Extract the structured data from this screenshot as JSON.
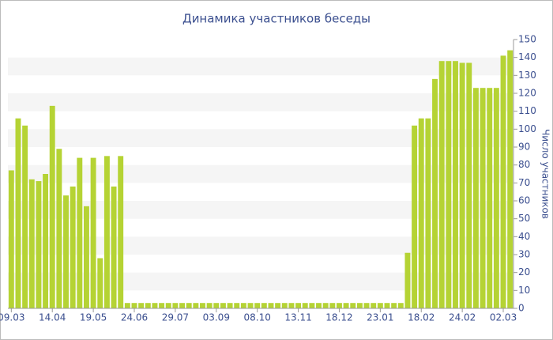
{
  "chart_data": {
    "type": "bar",
    "title": "Динамика участников беседы",
    "y_label": "Число участников",
    "categories": [
      "09.03",
      null,
      null,
      null,
      null,
      null,
      "14.04",
      null,
      null,
      null,
      null,
      null,
      "19.05",
      null,
      null,
      null,
      null,
      null,
      "24.06",
      null,
      null,
      null,
      null,
      null,
      "29.07",
      null,
      null,
      null,
      null,
      null,
      "03.09",
      null,
      null,
      null,
      null,
      null,
      "08.10",
      null,
      null,
      null,
      null,
      null,
      "13.11",
      null,
      null,
      null,
      null,
      null,
      "18.12",
      null,
      null,
      null,
      null,
      null,
      "23.01",
      null,
      null,
      null,
      null,
      null,
      "18.02",
      null,
      null,
      null,
      null,
      null,
      "24.02",
      null,
      null,
      null,
      null,
      null,
      "02.03",
      null
    ],
    "values": [
      77,
      106,
      102,
      72,
      71,
      75,
      113,
      89,
      63,
      68,
      84,
      57,
      84,
      28,
      85,
      68,
      85,
      3,
      3,
      3,
      3,
      3,
      3,
      3,
      3,
      3,
      3,
      3,
      3,
      3,
      3,
      3,
      3,
      3,
      3,
      3,
      3,
      3,
      3,
      3,
      3,
      3,
      3,
      3,
      3,
      3,
      3,
      3,
      3,
      3,
      3,
      3,
      3,
      3,
      3,
      3,
      3,
      3,
      31,
      102,
      106,
      106,
      128,
      138,
      138,
      138,
      137,
      137,
      123,
      123,
      123,
      123,
      141,
      144
    ],
    "color": "#b5d334",
    "ylim": [
      0,
      150
    ],
    "yticks": [
      0,
      10,
      20,
      30,
      40,
      50,
      60,
      70,
      80,
      90,
      100,
      110,
      120,
      130,
      140,
      150
    ],
    "grid": "bands",
    "y_axis_side": "right"
  }
}
